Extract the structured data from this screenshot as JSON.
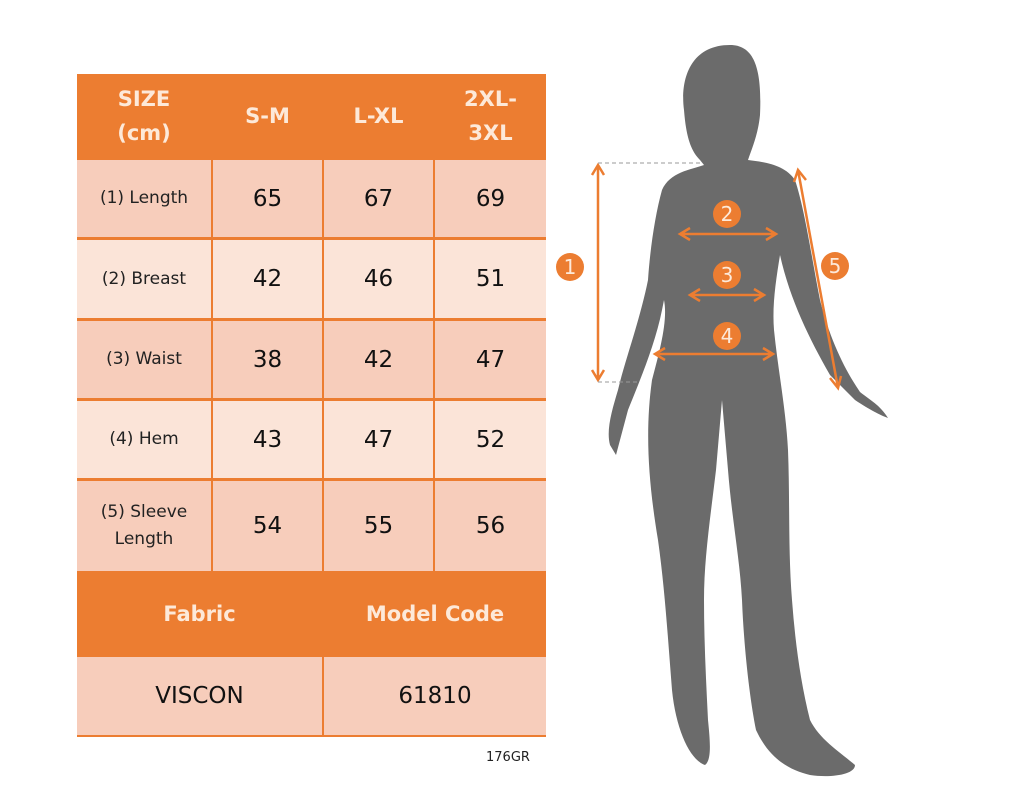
{
  "table": {
    "headers": [
      "SIZE\n(cm)",
      "S-M",
      "L-XL",
      "2XL-\n3XL"
    ],
    "rows": [
      {
        "label": "(1) Length",
        "values": [
          "65",
          "67",
          "69"
        ]
      },
      {
        "label": "(2) Breast",
        "values": [
          "42",
          "46",
          "51"
        ]
      },
      {
        "label": "(3) Waist",
        "values": [
          "38",
          "42",
          "47"
        ]
      },
      {
        "label": "(4) Hem",
        "values": [
          "43",
          "47",
          "52"
        ]
      },
      {
        "label": "(5) Sleeve\nLength",
        "values": [
          "54",
          "55",
          "56"
        ]
      }
    ],
    "footer_headers": [
      "Fabric",
      "Model Code"
    ],
    "footer_values": [
      "VISCON",
      "61810"
    ]
  },
  "caption": "176GR",
  "figure": {
    "markers": [
      "1",
      "2",
      "3",
      "4",
      "5"
    ],
    "accent_color": "#ec7d31",
    "silhouette_color": "#6b6b6b"
  }
}
